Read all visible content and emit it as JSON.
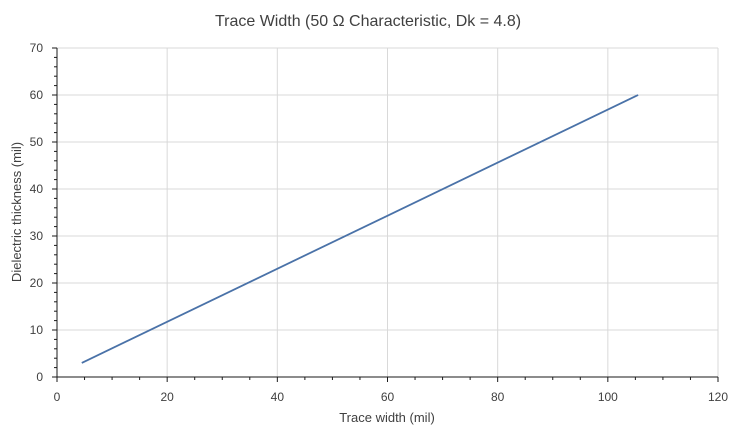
{
  "chart_data": {
    "type": "line",
    "title": "Trace Width (50 Ω Characteristic, Dk = 4.8)",
    "xlabel": "Trace width (mil)",
    "ylabel": "Dielectric thickness (mil)",
    "xlim": [
      0,
      120
    ],
    "ylim": [
      0,
      70
    ],
    "x_ticks": [
      0,
      20,
      40,
      60,
      80,
      100,
      120
    ],
    "y_ticks": [
      0,
      10,
      20,
      30,
      40,
      50,
      60,
      70
    ],
    "grid": true,
    "legend": "none",
    "series": [
      {
        "color": "#4a72a8",
        "x": [
          4.5,
          105.5
        ],
        "y": [
          3,
          60
        ]
      }
    ]
  }
}
